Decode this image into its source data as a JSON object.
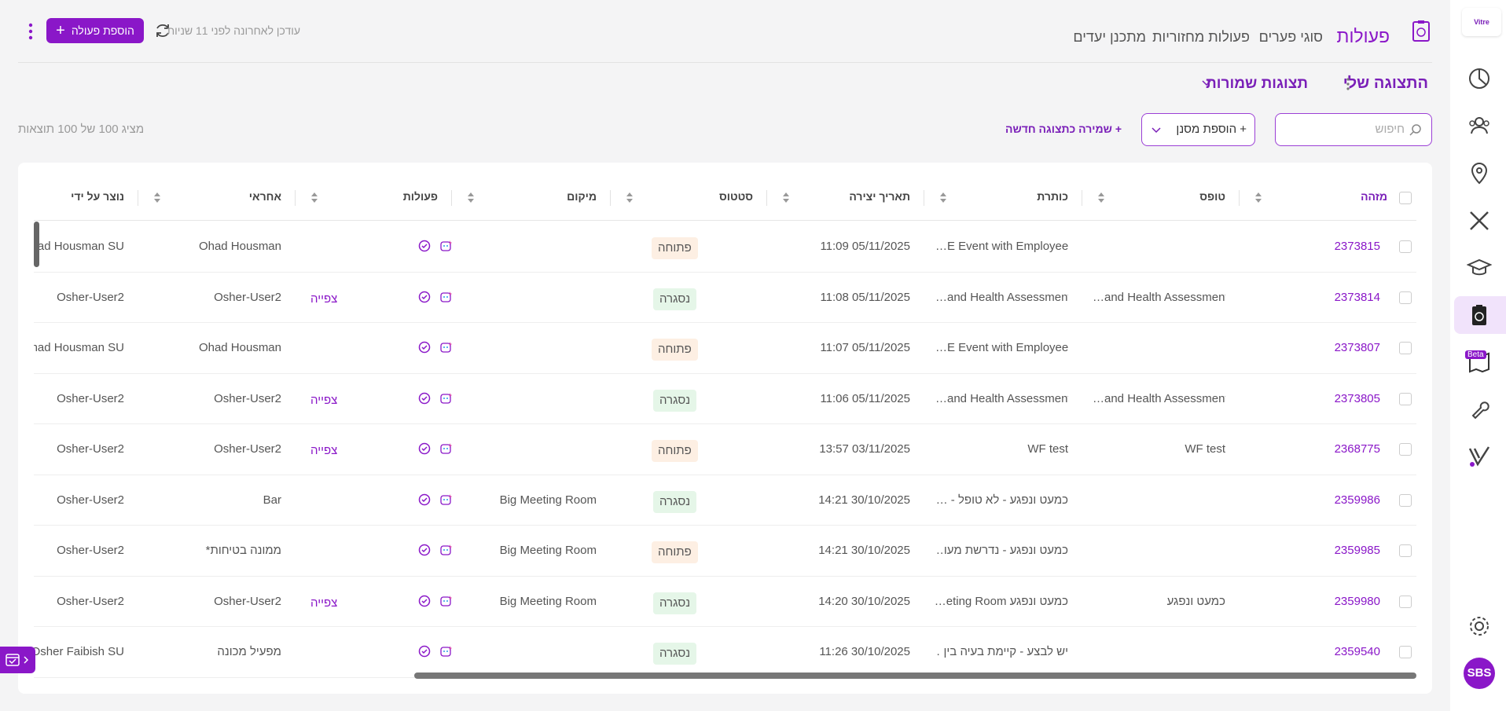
{
  "app": {
    "logo": "Vitre",
    "beta_badge": "Beta",
    "avatar": "SBS"
  },
  "header": {
    "tabs": [
      "פעולות",
      "סוגי פערים",
      "פעולות מחזוריות",
      "מתכנן יעדים"
    ],
    "last_updated": "עודכן לאחרונה לפני 11 שניות",
    "add_button": "הוספת פעולה"
  },
  "toolbar": {
    "view_name": "התצוגה שלי",
    "saved_views": "תצוגות שמורות",
    "search_placeholder": "חיפוש",
    "add_filter": "+ הוספת מסנן",
    "save_view": "+ שמירה כתצוגה חדשה",
    "results": "מציג 100 של 100 תוצאות"
  },
  "table": {
    "columns": [
      "מזהה",
      "טופס",
      "כותרת",
      "תאריך יצירה",
      "סטטוס",
      "מיקום",
      "פעולות",
      "אחראי",
      "נוצר על ידי"
    ],
    "rows": [
      {
        "id": "2373815",
        "form": null,
        "title": "…E Event with Employee",
        "created": "11:09 05/11/2025",
        "status": "פתוחה",
        "status_color": "#fdefe3",
        "location": null,
        "view": null,
        "responsible": "Ohad Housman",
        "created_by": "Ohad Housman SU"
      },
      {
        "id": "2373814",
        "form": "…and Health Assessment",
        "title": "…and Health Assessment",
        "created": "11:08 05/11/2025",
        "status": "נסגרה",
        "status_color": "#e5f6e8",
        "location": null,
        "view": "צפייה",
        "responsible": "Osher-User2",
        "created_by": "Osher-User2"
      },
      {
        "id": "2373807",
        "form": null,
        "title": "…E Event with Employee",
        "created": "11:07 05/11/2025",
        "status": "פתוחה",
        "status_color": "#fdefe3",
        "location": null,
        "view": null,
        "responsible": "Ohad Housman",
        "created_by": "Ohad Housman SU"
      },
      {
        "id": "2373805",
        "form": "…and Health Assessment",
        "title": "…and Health Assessment",
        "created": "11:06 05/11/2025",
        "status": "נסגרה",
        "status_color": "#e5f6e8",
        "location": null,
        "view": "צפייה",
        "responsible": "Osher-User2",
        "created_by": "Osher-User2"
      },
      {
        "id": "2368775",
        "form": "WF test",
        "title": "WF test",
        "created": "13:57 03/11/2025",
        "status": "פתוחה",
        "status_color": "#fdefe3",
        "location": null,
        "view": "צפייה",
        "responsible": "Osher-User2",
        "created_by": "Osher-User2"
      },
      {
        "id": "2359986",
        "form": null,
        "title": "כמעט ונפגע - לא טופל - …",
        "created": "14:21 30/10/2025",
        "status": "נסגרה",
        "status_color": "#e5f6e8",
        "location": "Big Meeting Room",
        "view": null,
        "responsible": "Bar",
        "created_by": "Osher-User2"
      },
      {
        "id": "2359985",
        "form": null,
        "title": "כמעט ונפגע - נדרשת מעו…",
        "created": "14:21 30/10/2025",
        "status": "פתוחה",
        "status_color": "#fdefe3",
        "location": "Big Meeting Room",
        "view": null,
        "responsible": "ממונה בטיחות*",
        "created_by": "Osher-User2"
      },
      {
        "id": "2359980",
        "form": "כמעט ונפגע",
        "title": "כמעט ונפגע eting Room…",
        "created": "14:20 30/10/2025",
        "status": "נסגרה",
        "status_color": "#e5f6e8",
        "location": "Big Meeting Room",
        "view": "צפייה",
        "responsible": "Osher-User2",
        "created_by": "Osher-User2"
      },
      {
        "id": "2359540",
        "form": null,
        "title": "יש לבצע - קיימת בעיה בין …",
        "created": "11:26 30/10/2025",
        "status": "נסגרה",
        "status_color": "#e5f6e8",
        "location": null,
        "view": null,
        "responsible": "מפעיל מכונה",
        "created_by": "Osher Faibish SU"
      }
    ]
  }
}
